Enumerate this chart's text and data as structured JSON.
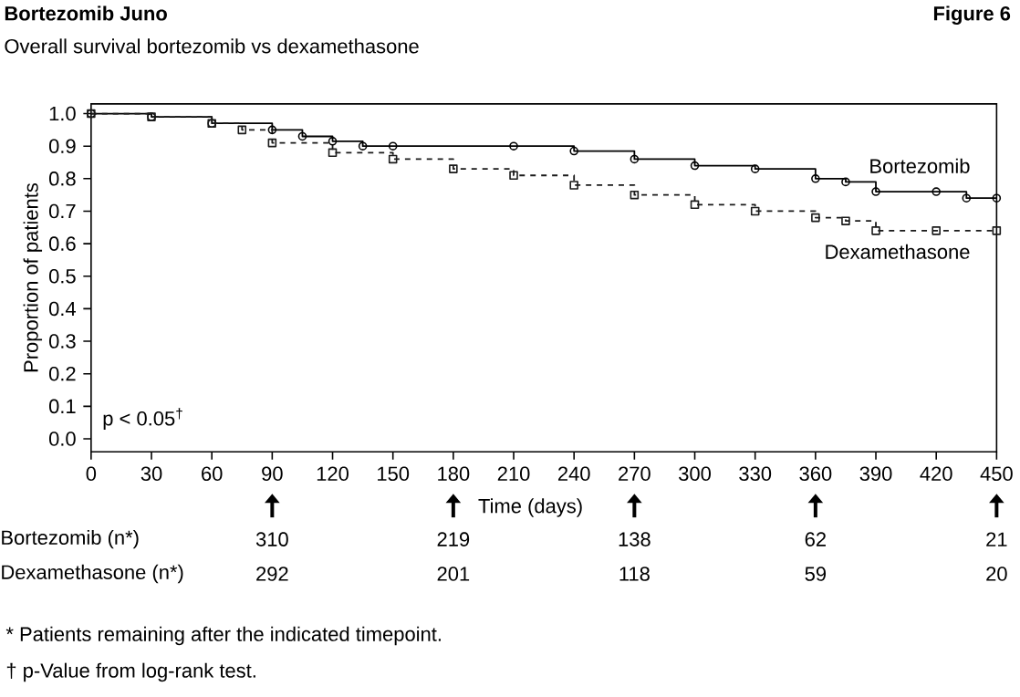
{
  "chart_data": {
    "type": "step",
    "title": "Bortezomib Juno",
    "subtitle": "Overall survival bortezomib vs dexamethasone",
    "xlabel": "Time (days)",
    "ylabel": "Proportion of patients",
    "xlim": [
      0,
      450
    ],
    "xticks": [
      0,
      30,
      60,
      90,
      120,
      150,
      180,
      210,
      240,
      270,
      300,
      330,
      360,
      390,
      420,
      450
    ],
    "ylim": [
      -0.04,
      1.03
    ],
    "yticks": [
      {
        "value": 0,
        "label": "0.0"
      },
      0.1,
      0.2,
      0.3,
      0.4,
      0.5,
      0.6,
      0.7,
      0.8,
      0.9,
      {
        "value": 1,
        "label": "1.0"
      }
    ],
    "series": [
      {
        "name": "Bortezomib",
        "color": "#000000",
        "marker": "circle",
        "line_style": "solid",
        "x": [
          0,
          30,
          60,
          90,
          105,
          120,
          135,
          150,
          210,
          240,
          270,
          300,
          330,
          360,
          375,
          390,
          420,
          435,
          450
        ],
        "values": [
          1.0,
          0.99,
          0.97,
          0.95,
          0.93,
          0.915,
          0.9,
          0.9,
          0.9,
          0.885,
          0.86,
          0.84,
          0.83,
          0.8,
          0.79,
          0.76,
          0.76,
          0.74,
          0.74
        ]
      },
      {
        "name": "Dexamethasone",
        "color": "#1a1a1a",
        "marker": "square",
        "line_style": "dashed",
        "x": [
          0,
          30,
          60,
          75,
          90,
          120,
          150,
          180,
          210,
          240,
          270,
          300,
          330,
          360,
          375,
          390,
          420,
          450
        ],
        "values": [
          1.0,
          0.99,
          0.97,
          0.95,
          0.91,
          0.88,
          0.86,
          0.83,
          0.81,
          0.78,
          0.75,
          0.72,
          0.7,
          0.68,
          0.67,
          0.64,
          0.64,
          0.64
        ]
      }
    ],
    "annotations": [
      "Figure 6",
      "p < 0.05$^{†}$",
      "Bortezomib (n*)",
      "Dexamethasone (n*)",
      "310",
      "219",
      "138",
      "62",
      "21",
      "292",
      "201",
      "118",
      "59",
      "20",
      "* Patients remaining after the indicated timepoint.",
      "† p-Value from log-rank test."
    ]
  }
}
